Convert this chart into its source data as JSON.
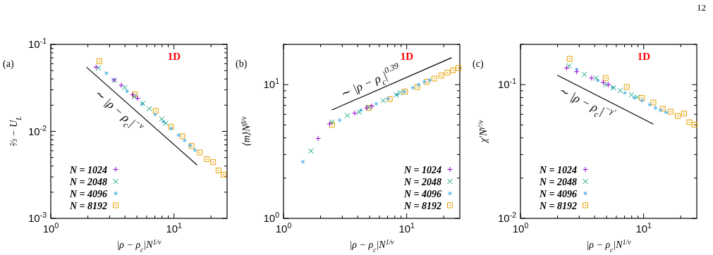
{
  "chart_data": [
    {
      "type": "scatter",
      "title": "(a)",
      "xlabel": "|ρ − ρ$_{c}$|N$^{1/ν}$",
      "ylabel": "⅔ − U$_{L}$",
      "log": "xy",
      "legend": "bottom left",
      "grid": false,
      "xlim": [
        1,
        27
      ],
      "xticks": [
        {
          "value": 1,
          "label": "10$^{0}$"
        },
        {
          "value": 2,
          "label": null
        },
        {
          "value": 3,
          "label": null
        },
        {
          "value": 4,
          "label": null
        },
        {
          "value": 5,
          "label": null
        },
        {
          "value": 6,
          "label": null
        },
        {
          "value": 7,
          "label": null
        },
        {
          "value": 8,
          "label": null
        },
        {
          "value": 9,
          "label": null
        },
        {
          "value": 10,
          "label": "10$^{1}$"
        },
        {
          "value": 20,
          "label": null
        }
      ],
      "ylim": [
        0.001,
        0.1
      ],
      "yticks": [
        {
          "value": 0.001,
          "label": "10$^{-3}$"
        },
        {
          "value": 0.002,
          "label": null
        },
        {
          "value": 0.003,
          "label": null
        },
        {
          "value": 0.004,
          "label": null
        },
        {
          "value": 0.005,
          "label": null
        },
        {
          "value": 0.006,
          "label": null
        },
        {
          "value": 0.007,
          "label": null
        },
        {
          "value": 0.008,
          "label": null
        },
        {
          "value": 0.009,
          "label": null
        },
        {
          "value": 0.01,
          "label": "10$^{-2}$"
        },
        {
          "value": 0.02,
          "label": null
        },
        {
          "value": 0.03,
          "label": null
        },
        {
          "value": 0.04,
          "label": null
        },
        {
          "value": 0.05,
          "label": null
        },
        {
          "value": 0.06,
          "label": null
        },
        {
          "value": 0.07,
          "label": null
        },
        {
          "value": 0.08,
          "label": null
        },
        {
          "value": 0.09,
          "label": null
        },
        {
          "value": 0.1,
          "label": "10$^{-1}$"
        }
      ],
      "annotations": [
        "1D",
        "∼ |ρ − ρ$_{c}$|$^{−ν}$"
      ],
      "series": [
        {
          "name": "N = 1024",
          "color": "#9400d3",
          "marker": "plus",
          "x": [
            2.33,
            3.27,
            3.73,
            4.64,
            5.07
          ],
          "values": [
            0.0547,
            0.039,
            0.0339,
            0.0263,
            0.024
          ]
        },
        {
          "name": "N = 2048",
          "color": "#009e73",
          "marker": "cross",
          "x": [
            2.44,
            3.27,
            3.98,
            4.79,
            5.58,
            6.31,
            7.96,
            8.58
          ],
          "values": [
            0.0536,
            0.0386,
            0.0319,
            0.025,
            0.021,
            0.0182,
            0.0139,
            0.0124
          ]
        },
        {
          "name": "N = 4096",
          "color": "#56b4e9",
          "marker": "star",
          "x": [
            2.83,
            4.16,
            5.53,
            7.04,
            8.21,
            9.49,
            10.9,
            12.2,
            13.5,
            14.8
          ],
          "values": [
            0.0467,
            0.0289,
            0.0206,
            0.0156,
            0.0129,
            0.0108,
            0.00903,
            0.00785,
            0.00691,
            0.0061
          ]
        },
        {
          "name": "N = 8192",
          "color": "#e69f00",
          "marker": "square",
          "x": [
            2.48,
            4.81,
            7.1,
            9.49,
            11.7,
            13.9,
            16.2,
            18.5,
            20.8,
            23.0,
            25.3
          ],
          "values": [
            0.0641,
            0.0266,
            0.0172,
            0.0113,
            0.0088,
            0.0068,
            0.00572,
            0.00479,
            0.00443,
            0.00355,
            0.00318
          ]
        },
        {
          "type": "line",
          "color": "#000000",
          "marker": "none",
          "x": [
            1.95,
            15.4
          ],
          "values": [
            0.0547,
            0.0041
          ]
        }
      ]
    },
    {
      "type": "scatter",
      "title": "(b)",
      "xlabel": "|ρ − ρ$_{c}$|N$^{1/ν}$",
      "ylabel": "⟨m⟩N$^{β/ν}$",
      "log": "xy",
      "legend": "bottom right",
      "grid": false,
      "xlim": [
        1,
        27
      ],
      "xticks": [
        {
          "value": 1,
          "label": "10$^{0}$"
        },
        {
          "value": 2,
          "label": null
        },
        {
          "value": 3,
          "label": null
        },
        {
          "value": 4,
          "label": null
        },
        {
          "value": 5,
          "label": null
        },
        {
          "value": 6,
          "label": null
        },
        {
          "value": 7,
          "label": null
        },
        {
          "value": 8,
          "label": null
        },
        {
          "value": 9,
          "label": null
        },
        {
          "value": 10,
          "label": "10$^{1}$"
        },
        {
          "value": 20,
          "label": null
        }
      ],
      "ylim": [
        1,
        20
      ],
      "yticks": [
        {
          "value": 1,
          "label": "10$^{0}$"
        },
        {
          "value": 2,
          "label": null
        },
        {
          "value": 3,
          "label": null
        },
        {
          "value": 4,
          "label": null
        },
        {
          "value": 5,
          "label": null
        },
        {
          "value": 6,
          "label": null
        },
        {
          "value": 7,
          "label": null
        },
        {
          "value": 8,
          "label": null
        },
        {
          "value": 9,
          "label": null
        },
        {
          "value": 10,
          "label": "10$^{1}$"
        },
        {
          "value": 20,
          "label": null
        }
      ],
      "annotations": [
        "1D",
        "∼ |ρ − ρ$_{c}$|$^{0.39}$"
      ],
      "series": [
        {
          "name": "N = 1024",
          "color": "#9400d3",
          "marker": "plus",
          "x": [
            1.91,
            2.37,
            3.78,
            4.74,
            5.22
          ],
          "values": [
            3.96,
            5.1,
            6.12,
            6.71,
            6.9
          ]
        },
        {
          "name": "N = 2048",
          "color": "#009e73",
          "marker": "cross",
          "x": [
            1.67,
            2.48,
            3.3,
            4.1,
            4.91,
            6.45,
            8.21,
            8.85
          ],
          "values": [
            3.19,
            5.25,
            5.88,
            6.24,
            6.77,
            7.6,
            8.38,
            8.72
          ]
        },
        {
          "name": "N = 4096",
          "color": "#56b4e9",
          "marker": "star",
          "x": [
            1.44,
            2.86,
            4.25,
            5.65,
            7.04,
            8.39,
            9.57,
            11.2,
            12.5,
            13.9,
            15.4
          ],
          "values": [
            2.65,
            5.42,
            6.45,
            7.19,
            7.85,
            8.45,
            8.87,
            9.46,
            10.0,
            10.5,
            10.8
          ]
        },
        {
          "name": "N = 8192",
          "color": "#e69f00",
          "marker": "square",
          "x": [
            2.48,
            4.91,
            7.29,
            9.7,
            12.2,
            14.5,
            16.8,
            19.1,
            21.4,
            23.8,
            26.3
          ],
          "values": [
            5.0,
            6.71,
            7.79,
            8.87,
            9.6,
            10.5,
            11.1,
            11.7,
            12.3,
            12.8,
            13.3
          ]
        },
        {
          "type": "line",
          "color": "#000000",
          "marker": "none",
          "x": [
            2.46,
            23.2
          ],
          "values": [
            6.45,
            15.9
          ]
        }
      ]
    },
    {
      "type": "scatter",
      "title": "(c)",
      "xlabel": "|ρ − ρ$_{c}$|N$^{1/ν}$",
      "ylabel": "χ′N$^{γ′/ν}$",
      "log": "xy",
      "legend": "bottom left",
      "grid": false,
      "xlim": [
        1,
        27
      ],
      "xticks": [
        {
          "value": 1,
          "label": "10$^{0}$"
        },
        {
          "value": 2,
          "label": null
        },
        {
          "value": 3,
          "label": null
        },
        {
          "value": 4,
          "label": null
        },
        {
          "value": 5,
          "label": null
        },
        {
          "value": 6,
          "label": null
        },
        {
          "value": 7,
          "label": null
        },
        {
          "value": 8,
          "label": null
        },
        {
          "value": 9,
          "label": null
        },
        {
          "value": 10,
          "label": "10$^{1}$"
        },
        {
          "value": 20,
          "label": null
        }
      ],
      "ylim": [
        0.01,
        0.2
      ],
      "yticks": [
        {
          "value": 0.01,
          "label": "10$^{-2}$"
        },
        {
          "value": 0.02,
          "label": null
        },
        {
          "value": 0.03,
          "label": null
        },
        {
          "value": 0.04,
          "label": null
        },
        {
          "value": 0.05,
          "label": null
        },
        {
          "value": 0.06,
          "label": null
        },
        {
          "value": 0.07,
          "label": null
        },
        {
          "value": 0.08,
          "label": null
        },
        {
          "value": 0.09,
          "label": null
        },
        {
          "value": 0.1,
          "label": "10$^{-1}$"
        },
        {
          "value": 0.2,
          "label": null
        }
      ],
      "annotations": [
        "1D",
        "∼ |ρ − ρ$_{c}$|$^{−γ′}$",
        "12"
      ],
      "series": [
        {
          "name": "N = 1024",
          "color": "#9400d3",
          "marker": "plus",
          "x": [
            2.37,
            2.86,
            3.78,
            4.7,
            5.18
          ],
          "values": [
            0.133,
            0.125,
            0.112,
            0.104,
            0.1
          ]
        },
        {
          "name": "N = 2048",
          "color": "#009e73",
          "marker": "cross",
          "x": [
            2.48,
            3.3,
            4.12,
            4.91,
            5.7,
            6.45,
            7.96,
            8.85
          ],
          "values": [
            0.138,
            0.119,
            0.112,
            0.1,
            0.0949,
            0.0903,
            0.084,
            0.0807
          ]
        },
        {
          "name": "N = 4096",
          "color": "#56b4e9",
          "marker": "star",
          "x": [
            2.86,
            4.25,
            5.6,
            7.04,
            8.39,
            9.7,
            11.2,
            12.5,
            13.7,
            15.2
          ],
          "values": [
            0.13,
            0.1075,
            0.0949,
            0.0867,
            0.08,
            0.0759,
            0.0708,
            0.0671,
            0.0645,
            0.062
          ]
        },
        {
          "name": "N = 8192",
          "color": "#e69f00",
          "marker": "square",
          "x": [
            2.51,
            4.91,
            7.29,
            9.7,
            12.0,
            14.3,
            16.6,
            18.9,
            21.3,
            23.5,
            26.0
          ],
          "values": [
            0.156,
            0.112,
            0.096,
            0.0794,
            0.0735,
            0.0661,
            0.0627,
            0.0583,
            0.0607,
            0.0523,
            0.0502
          ]
        },
        {
          "type": "line",
          "color": "#000000",
          "marker": "none",
          "x": [
            1.99,
            12.0
          ],
          "values": [
            0.1176,
            0.0506
          ]
        }
      ]
    }
  ]
}
